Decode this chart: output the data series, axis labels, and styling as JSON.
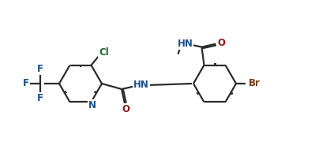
{
  "bg_color": "#ffffff",
  "line_color": "#2c2c2c",
  "line_width": 1.6,
  "dbo": 0.018,
  "font_size": 8.5,
  "atom_colors": {
    "C": "#2c2c2c",
    "N": "#1a4f8a",
    "O": "#8b1a1a",
    "Cl": "#1a6b2a",
    "Br": "#7a3c10",
    "F": "#1a4f8a"
  }
}
